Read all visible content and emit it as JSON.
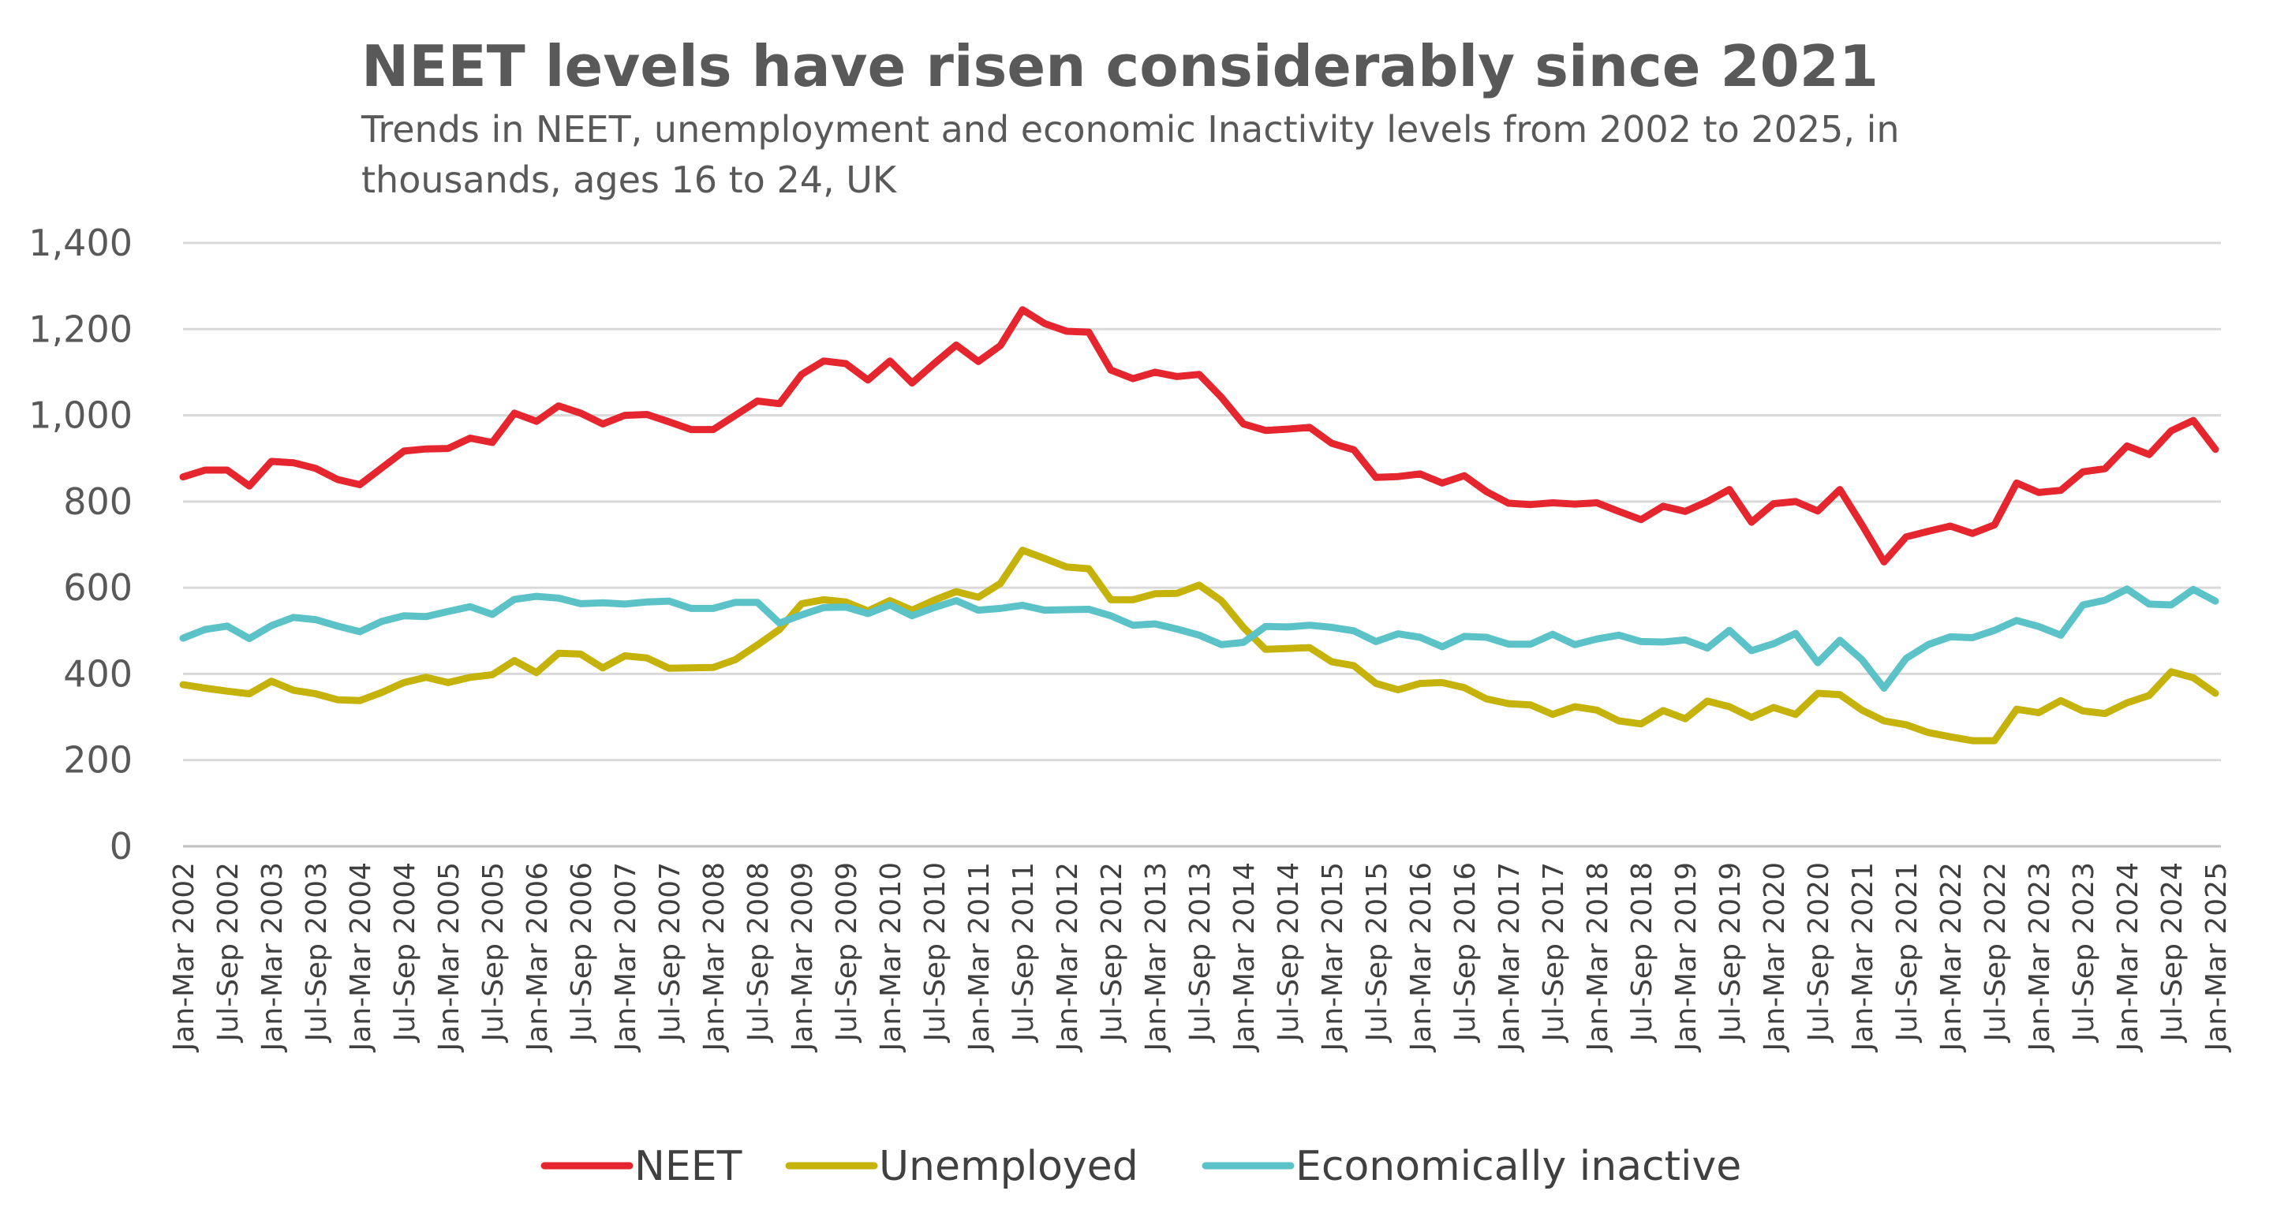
{
  "chart_data": {
    "type": "line",
    "title": "NEET levels have risen considerably since 2021",
    "subtitle": "Trends in NEET, unemployment and economic Inactivity levels from 2002 to 2025, in thousands, ages 16 to 24, UK",
    "xlabel": "",
    "ylabel": "",
    "ylim": [
      0,
      1400
    ],
    "yticks": [
      0,
      200,
      400,
      600,
      800,
      1000,
      1200,
      1400
    ],
    "ytick_labels": [
      "0",
      "200",
      "400",
      "600",
      "800",
      "1,000",
      "1,200",
      "1,400"
    ],
    "grid": true,
    "legend_position": "bottom",
    "x_count": 93,
    "x_tick_labels": [
      "Jan-Mar 2002",
      "Jul-Sep 2002",
      "Jan-Mar 2003",
      "Jul-Sep 2003",
      "Jan-Mar 2004",
      "Jul-Sep 2004",
      "Jan-Mar 2005",
      "Jul-Sep 2005",
      "Jan-Mar 2006",
      "Jul-Sep 2006",
      "Jan-Mar 2007",
      "Jul-Sep 2007",
      "Jan-Mar 2008",
      "Jul-Sep 2008",
      "Jan-Mar 2009",
      "Jul-Sep 2009",
      "Jan-Mar 2010",
      "Jul-Sep 2010",
      "Jan-Mar 2011",
      "Jul-Sep 2011",
      "Jan-Mar 2012",
      "Jul-Sep 2012",
      "Jan-Mar 2013",
      "Jul-Sep 2013",
      "Jan-Mar 2014",
      "Jul-Sep 2014",
      "Jan-Mar 2015",
      "Jul-Sep 2015",
      "Jan-Mar 2016",
      "Jul-Sep 2016",
      "Jan-Mar 2017",
      "Jul-Sep 2017",
      "Jan-Mar 2018",
      "Jul-Sep 2018",
      "Jan-Mar 2019",
      "Jul-Sep 2019",
      "Jan-Mar 2020",
      "Jul-Sep 2020",
      "Jan-Mar 2021",
      "Jul-Sep 2021",
      "Jan-Mar 2022",
      "Jul-Sep 2022",
      "Jan-Mar 2023",
      "Jul-Sep 2023",
      "Jan-Mar 2024",
      "Jul-Sep 2024",
      "Jan-Mar 2025"
    ],
    "series": [
      {
        "name": "NEET",
        "color": "#e5262f",
        "values": [
          857,
          873,
          873,
          836,
          893,
          890,
          877,
          851,
          839,
          878,
          917,
          922,
          923,
          947,
          937,
          1005,
          986,
          1022,
          1005,
          980,
          1000,
          1002,
          985,
          967,
          967,
          1000,
          1033,
          1027,
          1095,
          1126,
          1120,
          1082,
          1126,
          1075,
          1120,
          1163,
          1125,
          1162,
          1245,
          1213,
          1195,
          1193,
          1105,
          1085,
          1100,
          1090,
          1095,
          1042,
          980,
          965,
          968,
          972,
          935,
          920,
          856,
          858,
          864,
          843,
          860,
          823,
          796,
          793,
          797,
          794,
          797,
          777,
          758,
          789,
          777,
          800,
          828,
          752,
          795,
          800,
          778,
          828,
          746,
          660,
          718,
          731,
          743,
          726,
          746,
          843,
          821,
          826,
          869,
          876,
          929,
          909,
          964,
          988,
          921
        ]
      },
      {
        "name": "Unemployed",
        "color": "#c5b20a",
        "values": [
          375,
          367,
          360,
          354,
          383,
          362,
          354,
          340,
          338,
          357,
          380,
          392,
          380,
          392,
          398,
          431,
          403,
          448,
          446,
          414,
          442,
          437,
          413,
          414,
          415,
          433,
          467,
          503,
          563,
          572,
          567,
          546,
          570,
          548,
          571,
          591,
          578,
          610,
          687,
          668,
          648,
          644,
          572,
          572,
          586,
          587,
          606,
          570,
          508,
          457,
          459,
          461,
          428,
          419,
          378,
          363,
          378,
          380,
          368,
          342,
          331,
          328,
          306,
          324,
          316,
          291,
          284,
          315,
          296,
          337,
          324,
          299,
          322,
          306,
          355,
          352,
          316,
          291,
          282,
          264,
          254,
          245,
          245,
          318,
          310,
          338,
          314,
          308,
          333,
          350,
          405,
          391,
          355
        ]
      },
      {
        "name": "Economically inactive",
        "color": "#5bc2c8",
        "values": [
          483,
          503,
          511,
          482,
          512,
          531,
          526,
          511,
          498,
          522,
          535,
          533,
          545,
          556,
          538,
          573,
          580,
          576,
          563,
          565,
          562,
          567,
          569,
          552,
          552,
          566,
          566,
          518,
          537,
          554,
          555,
          540,
          560,
          535,
          554,
          570,
          548,
          552,
          559,
          548,
          549,
          550,
          535,
          513,
          516,
          504,
          490,
          468,
          473,
          510,
          509,
          513,
          508,
          500,
          475,
          493,
          485,
          463,
          487,
          485,
          469,
          469,
          492,
          468,
          481,
          490,
          475,
          474,
          479,
          460,
          501,
          454,
          470,
          494,
          426,
          478,
          433,
          367,
          436,
          468,
          486,
          484,
          501,
          524,
          510,
          490,
          560,
          571,
          597,
          562,
          560,
          596,
          569
        ]
      }
    ]
  }
}
